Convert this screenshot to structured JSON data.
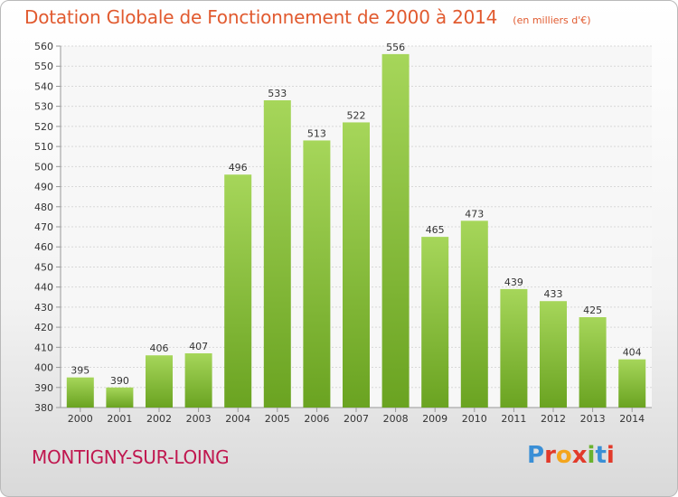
{
  "header": {
    "title": "Dotation Globale de Fonctionnement de 2000 à 2014",
    "unit": "(en milliers d'€)"
  },
  "footer": {
    "commune": "MONTIGNY-SUR-LOING",
    "logo_text": "Proxiti"
  },
  "colors": {
    "title": "#e15a2f",
    "commune": "#c0174f",
    "bar_light": "#a6d65a",
    "bar_dark": "#6aa321",
    "logo": [
      "#3a8fd6",
      "#e23a2a",
      "#f4a51c",
      "#e23a2a",
      "#6ab22e",
      "#3a8fd6",
      "#e23a2a"
    ]
  },
  "chart_data": {
    "type": "bar",
    "title": "Dotation Globale de Fonctionnement de 2000 à 2014",
    "subtitle": "(en milliers d'€)",
    "categories": [
      "2000",
      "2001",
      "2002",
      "2003",
      "2004",
      "2005",
      "2006",
      "2007",
      "2008",
      "2009",
      "2010",
      "2011",
      "2012",
      "2013",
      "2014"
    ],
    "values": [
      395,
      390,
      406,
      407,
      496,
      533,
      513,
      522,
      556,
      465,
      473,
      439,
      433,
      425,
      404
    ],
    "ylim": [
      380,
      560
    ],
    "yticks": [
      380,
      390,
      400,
      410,
      420,
      430,
      440,
      450,
      460,
      470,
      480,
      490,
      500,
      510,
      520,
      530,
      540,
      550,
      560
    ],
    "grid": true,
    "legend": "none"
  }
}
